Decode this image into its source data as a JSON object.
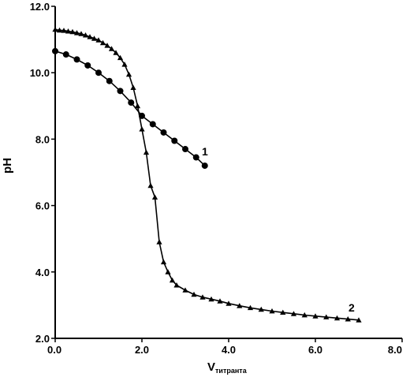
{
  "chart_data": {
    "type": "line",
    "xlabel": "V",
    "xlabel_sub": "титранта",
    "ylabel": "pH",
    "xlim": [
      0,
      8
    ],
    "ylim": [
      2,
      12
    ],
    "xticks": [
      0,
      2,
      4,
      6,
      8
    ],
    "yticks": [
      2,
      4,
      6,
      8,
      10,
      12
    ],
    "xtick_labels": [
      "0.0",
      "2.0",
      "4.0",
      "6.0",
      "8.0"
    ],
    "ytick_labels": [
      "2.0",
      "4.0",
      "6.0",
      "8.0",
      "10.0",
      "12.0"
    ],
    "grid": false,
    "series": [
      {
        "name": "1",
        "marker": "circle",
        "x": [
          0.0,
          0.25,
          0.5,
          0.75,
          1.0,
          1.25,
          1.5,
          1.75,
          2.0,
          2.25,
          2.5,
          2.75,
          3.0,
          3.25,
          3.45
        ],
        "y": [
          10.65,
          10.55,
          10.4,
          10.22,
          10.0,
          9.75,
          9.45,
          9.1,
          8.7,
          8.45,
          8.2,
          7.95,
          7.7,
          7.45,
          7.2
        ]
      },
      {
        "name": "2",
        "marker": "triangle",
        "x": [
          0.0,
          0.1,
          0.2,
          0.3,
          0.4,
          0.5,
          0.6,
          0.7,
          0.8,
          0.9,
          1.0,
          1.1,
          1.2,
          1.3,
          1.4,
          1.5,
          1.6,
          1.7,
          1.8,
          1.9,
          2.0,
          2.1,
          2.2,
          2.3,
          2.4,
          2.5,
          2.6,
          2.7,
          2.8,
          3.0,
          3.2,
          3.4,
          3.6,
          3.8,
          4.0,
          4.25,
          4.5,
          4.75,
          5.0,
          5.25,
          5.5,
          5.75,
          6.0,
          6.25,
          6.5,
          6.75,
          7.0
        ],
        "y": [
          11.3,
          11.28,
          11.27,
          11.25,
          11.23,
          11.2,
          11.17,
          11.13,
          11.08,
          11.03,
          10.98,
          10.9,
          10.82,
          10.72,
          10.6,
          10.45,
          10.25,
          9.95,
          9.55,
          9.0,
          8.3,
          7.6,
          6.6,
          6.25,
          4.9,
          4.3,
          4.0,
          3.75,
          3.6,
          3.45,
          3.32,
          3.24,
          3.18,
          3.12,
          3.05,
          2.98,
          2.92,
          2.87,
          2.82,
          2.78,
          2.74,
          2.7,
          2.67,
          2.64,
          2.61,
          2.58,
          2.55
        ]
      }
    ]
  }
}
